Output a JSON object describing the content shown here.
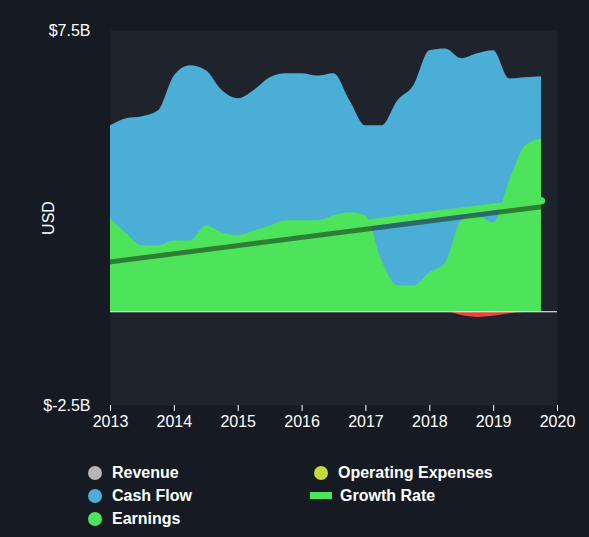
{
  "chart_data": {
    "type": "area",
    "y_label": "USD",
    "x": [
      2013,
      2013.25,
      2013.5,
      2013.75,
      2014,
      2014.25,
      2014.5,
      2014.75,
      2015,
      2015.25,
      2015.5,
      2015.75,
      2016,
      2016.25,
      2016.5,
      2016.75,
      2017,
      2017.25,
      2017.5,
      2017.75,
      2018,
      2018.25,
      2018.5,
      2018.75,
      2019,
      2019.25,
      2019.5,
      2019.75
    ],
    "xlim": [
      2013,
      2020
    ],
    "xticks": [
      2013,
      2014,
      2015,
      2016,
      2017,
      2018,
      2019,
      2020
    ],
    "ylim": [
      -2.5,
      7.5
    ],
    "yticks": [
      {
        "value": -2.5,
        "label": "$-2.5B"
      },
      {
        "value": 7.5,
        "label": "$7.5B"
      }
    ],
    "grid": false,
    "series": [
      {
        "name": "Revenue",
        "color": "#b5b5b5",
        "type": "area",
        "values": [
          null,
          null,
          null,
          null,
          null,
          null,
          null,
          null,
          null,
          null,
          null,
          null,
          null,
          null,
          null,
          null,
          null,
          null,
          null,
          null,
          null,
          null,
          null,
          null,
          null,
          null,
          null,
          null
        ]
      },
      {
        "name": "Cash Flow",
        "color": "#4aaed6",
        "type": "area",
        "values": [
          4.96,
          5.15,
          5.2,
          5.36,
          6.29,
          6.56,
          6.43,
          5.9,
          5.68,
          5.9,
          6.24,
          6.35,
          6.35,
          6.29,
          6.35,
          5.63,
          4.96,
          4.96,
          5.63,
          6.03,
          6.96,
          7.01,
          6.75,
          6.88,
          6.96,
          6.21,
          6.24,
          6.27
        ]
      },
      {
        "name": "Earnings",
        "color": "#4de45c",
        "type": "area",
        "values": [
          2.48,
          2.08,
          1.76,
          1.76,
          1.89,
          1.89,
          2.29,
          2.11,
          2.03,
          2.16,
          2.29,
          2.43,
          2.43,
          2.43,
          2.56,
          2.64,
          2.56,
          1.36,
          0.69,
          0.69,
          1.04,
          1.31,
          2.43,
          2.56,
          2.37,
          3.49,
          4.43,
          4.61
        ]
      },
      {
        "name": "Operating Expenses",
        "color": "#c4d93b",
        "type": "area",
        "values": [
          null,
          null,
          null,
          null,
          null,
          null,
          null,
          null,
          null,
          null,
          null,
          null,
          null,
          null,
          null,
          null,
          null,
          null,
          null,
          null,
          null,
          null,
          null,
          null,
          null,
          null,
          null,
          null
        ]
      },
      {
        "name": null,
        "color": "#e8453c",
        "type": "area",
        "values": [
          null,
          null,
          null,
          null,
          null,
          null,
          null,
          null,
          null,
          null,
          null,
          null,
          null,
          null,
          null,
          null,
          null,
          null,
          null,
          null,
          null,
          null,
          -0.1,
          -0.15,
          -0.12,
          -0.05,
          -0.02,
          -0.02
        ]
      },
      {
        "name": "Growth Rate",
        "color": "#4de45c",
        "type": "line",
        "x": [
          2013,
          2019.75
        ],
        "values": [
          1.49,
          2.96
        ]
      }
    ]
  }
}
